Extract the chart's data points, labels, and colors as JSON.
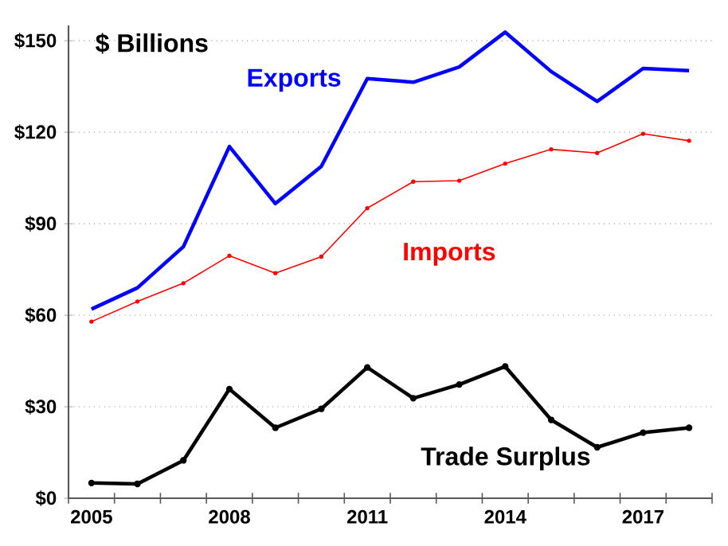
{
  "chart_data": {
    "type": "line",
    "ylabel": "$ Billions",
    "categories": [
      "2005",
      null,
      null,
      "2008",
      null,
      null,
      "2011",
      null,
      null,
      "2014",
      null,
      null,
      "2017",
      null
    ],
    "series": [
      {
        "name": "Exports",
        "color": "#0000ff",
        "marker": "none",
        "values": [
          62,
          69,
          82.5,
          115.3,
          96.6,
          108.8,
          137.6,
          136.4,
          141.4,
          152.8,
          139.9,
          130.1,
          140.9,
          140.2
        ]
      },
      {
        "name": "Imports",
        "color": "#ff0000",
        "marker": "circle",
        "values": [
          57.9,
          64.5,
          70.5,
          79.5,
          73.8,
          79.2,
          95.1,
          103.8,
          104.1,
          109.7,
          114.4,
          113.2,
          119.5,
          117.2
        ]
      },
      {
        "name": "Trade Surplus",
        "color": "#000000",
        "marker": "circle",
        "values": [
          5.0,
          4.7,
          12.4,
          35.8,
          23.1,
          29.3,
          42.9,
          32.8,
          37.3,
          43.2,
          25.7,
          16.7,
          21.5,
          23.1
        ]
      }
    ],
    "ylim": [
      0,
      155
    ],
    "yticks": [
      {
        "value": 0,
        "label": "$0"
      },
      {
        "value": 30,
        "label": "$30"
      },
      {
        "value": 60,
        "label": "$60"
      },
      {
        "value": 90,
        "label": "$90"
      },
      {
        "value": 120,
        "label": "$120"
      },
      {
        "value": 150,
        "label": "$150"
      }
    ],
    "grid": "y"
  }
}
